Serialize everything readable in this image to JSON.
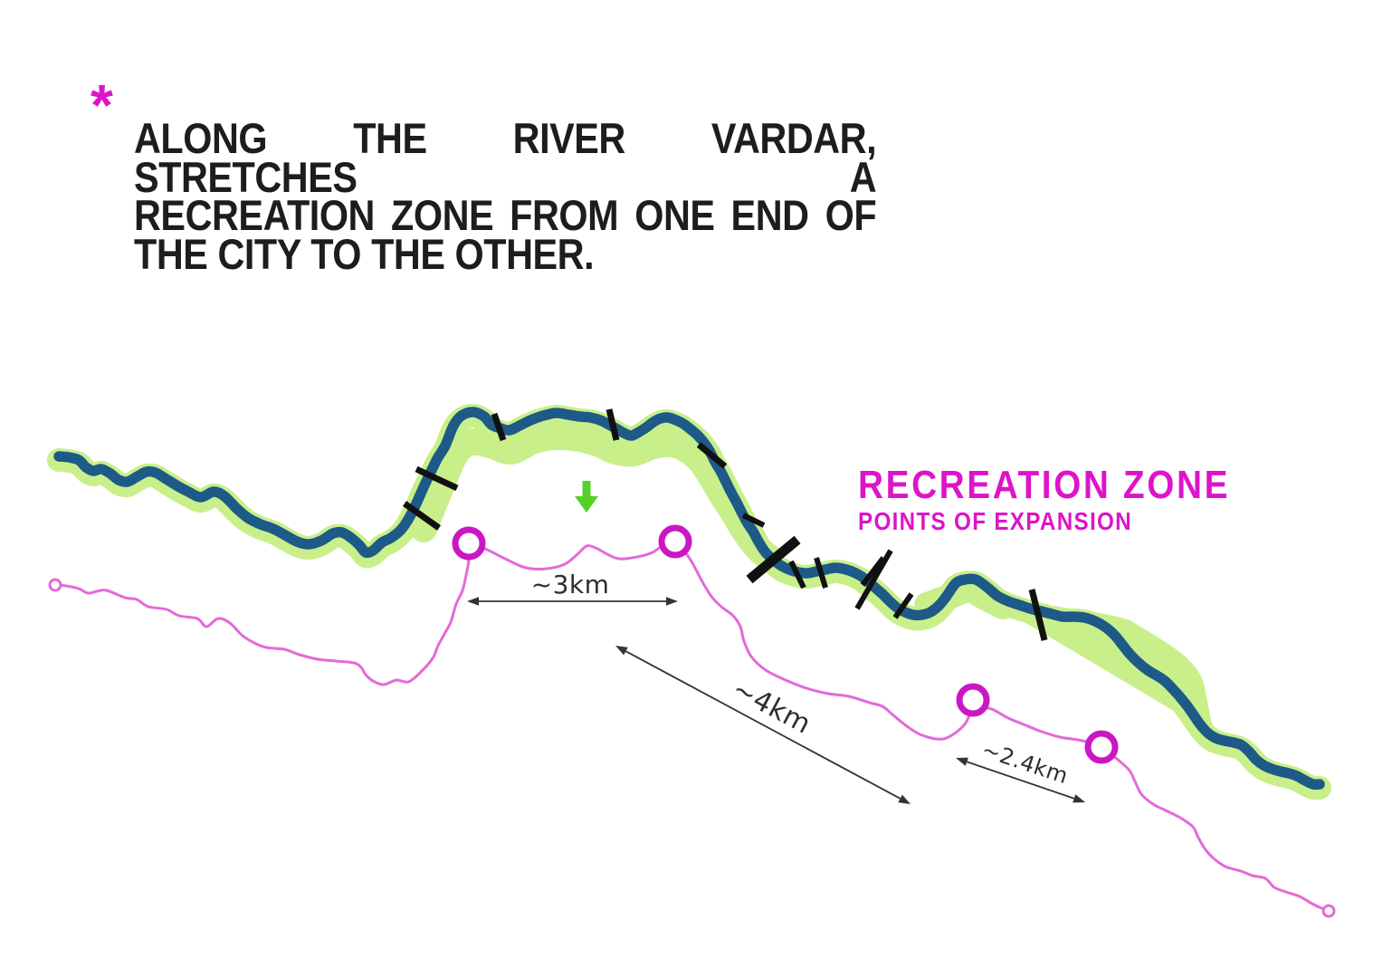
{
  "annotation": {
    "asterisk_symbol": "*",
    "heading_lines": [
      "ALONG THE RIVER VARDAR, STRETCHES A",
      "RECREATION ZONE FROM ONE END OF",
      "THE CITY TO THE OTHER."
    ]
  },
  "legend": {
    "title": "RECREATION ZONE",
    "subtitle": "POINTS OF EXPANSION"
  },
  "measurements": {
    "span_1": "~3km",
    "span_2": "~4km",
    "span_3": "~2.4km"
  },
  "colors": {
    "river": "#1e5a87",
    "recreation_zone": "#c9ef8a",
    "accent_magenta": "#dd14c9",
    "marker_magenta": "#cb17c3",
    "route_pink": "#e36ad8",
    "arrow_green": "#55d028",
    "ink": "#1d1d1b",
    "dimension": "#333333"
  }
}
